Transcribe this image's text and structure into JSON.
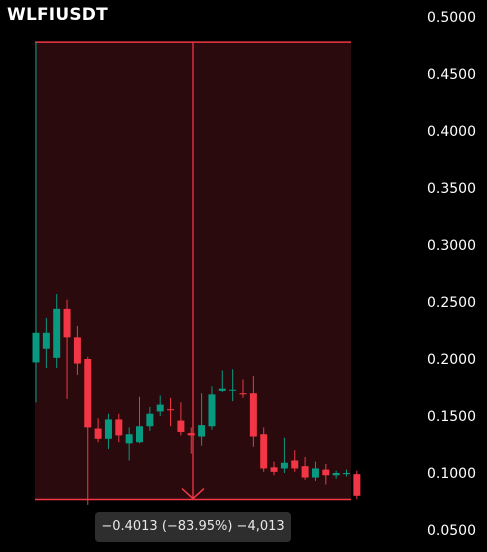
{
  "symbol": "WLFIUSDT",
  "colors": {
    "background": "#000000",
    "up": "#089981",
    "down": "#f23645",
    "measure_fill": "#2a0a0d",
    "measure_line": "#f23645",
    "tooltip_bg": "#2e2e2e"
  },
  "measure": {
    "label": "−0.4013 (−83.95%) −4,013",
    "start_price": 0.478,
    "end_price": 0.0767
  },
  "chart_data": {
    "type": "candlestick",
    "price_axis": {
      "position": "right",
      "ticks": [
        "0.5000",
        "0.4500",
        "0.4000",
        "0.3500",
        "0.3000",
        "0.2500",
        "0.2000",
        "0.1500",
        "0.1000",
        "0.0500"
      ],
      "range": [
        0.05,
        0.5
      ]
    },
    "candles": [
      {
        "open": 0.197,
        "high": 0.478,
        "low": 0.162,
        "close": 0.223
      },
      {
        "open": 0.209,
        "high": 0.236,
        "low": 0.192,
        "close": 0.223
      },
      {
        "open": 0.201,
        "high": 0.257,
        "low": 0.192,
        "close": 0.244
      },
      {
        "open": 0.244,
        "high": 0.252,
        "low": 0.165,
        "close": 0.219
      },
      {
        "open": 0.219,
        "high": 0.229,
        "low": 0.186,
        "close": 0.196
      },
      {
        "open": 0.2,
        "high": 0.202,
        "low": 0.072,
        "close": 0.14
      },
      {
        "open": 0.139,
        "high": 0.148,
        "low": 0.127,
        "close": 0.13
      },
      {
        "open": 0.13,
        "high": 0.152,
        "low": 0.121,
        "close": 0.147
      },
      {
        "open": 0.147,
        "high": 0.152,
        "low": 0.127,
        "close": 0.133
      },
      {
        "open": 0.126,
        "high": 0.14,
        "low": 0.111,
        "close": 0.134
      },
      {
        "open": 0.127,
        "high": 0.167,
        "low": 0.126,
        "close": 0.141
      },
      {
        "open": 0.141,
        "high": 0.158,
        "low": 0.137,
        "close": 0.152
      },
      {
        "open": 0.154,
        "high": 0.168,
        "low": 0.15,
        "close": 0.16
      },
      {
        "open": 0.156,
        "high": 0.166,
        "low": 0.141,
        "close": 0.155
      },
      {
        "open": 0.146,
        "high": 0.162,
        "low": 0.133,
        "close": 0.136
      },
      {
        "open": 0.135,
        "high": 0.14,
        "low": 0.117,
        "close": 0.133
      },
      {
        "open": 0.132,
        "high": 0.17,
        "low": 0.124,
        "close": 0.142
      },
      {
        "open": 0.141,
        "high": 0.176,
        "low": 0.138,
        "close": 0.169
      },
      {
        "open": 0.172,
        "high": 0.19,
        "low": 0.171,
        "close": 0.174
      },
      {
        "open": 0.173,
        "high": 0.191,
        "low": 0.163,
        "close": 0.173
      },
      {
        "open": 0.17,
        "high": 0.182,
        "low": 0.166,
        "close": 0.169
      },
      {
        "open": 0.17,
        "high": 0.185,
        "low": 0.123,
        "close": 0.132
      },
      {
        "open": 0.134,
        "high": 0.14,
        "low": 0.101,
        "close": 0.104
      },
      {
        "open": 0.105,
        "high": 0.11,
        "low": 0.098,
        "close": 0.101
      },
      {
        "open": 0.104,
        "high": 0.131,
        "low": 0.1,
        "close": 0.109
      },
      {
        "open": 0.111,
        "high": 0.12,
        "low": 0.101,
        "close": 0.104
      },
      {
        "open": 0.106,
        "high": 0.114,
        "low": 0.094,
        "close": 0.096
      },
      {
        "open": 0.096,
        "high": 0.11,
        "low": 0.093,
        "close": 0.104
      },
      {
        "open": 0.103,
        "high": 0.108,
        "low": 0.09,
        "close": 0.098
      },
      {
        "open": 0.098,
        "high": 0.102,
        "low": 0.095,
        "close": 0.1
      },
      {
        "open": 0.099,
        "high": 0.103,
        "low": 0.097,
        "close": 0.1
      },
      {
        "open": 0.099,
        "high": 0.102,
        "low": 0.077,
        "close": 0.08
      }
    ]
  }
}
